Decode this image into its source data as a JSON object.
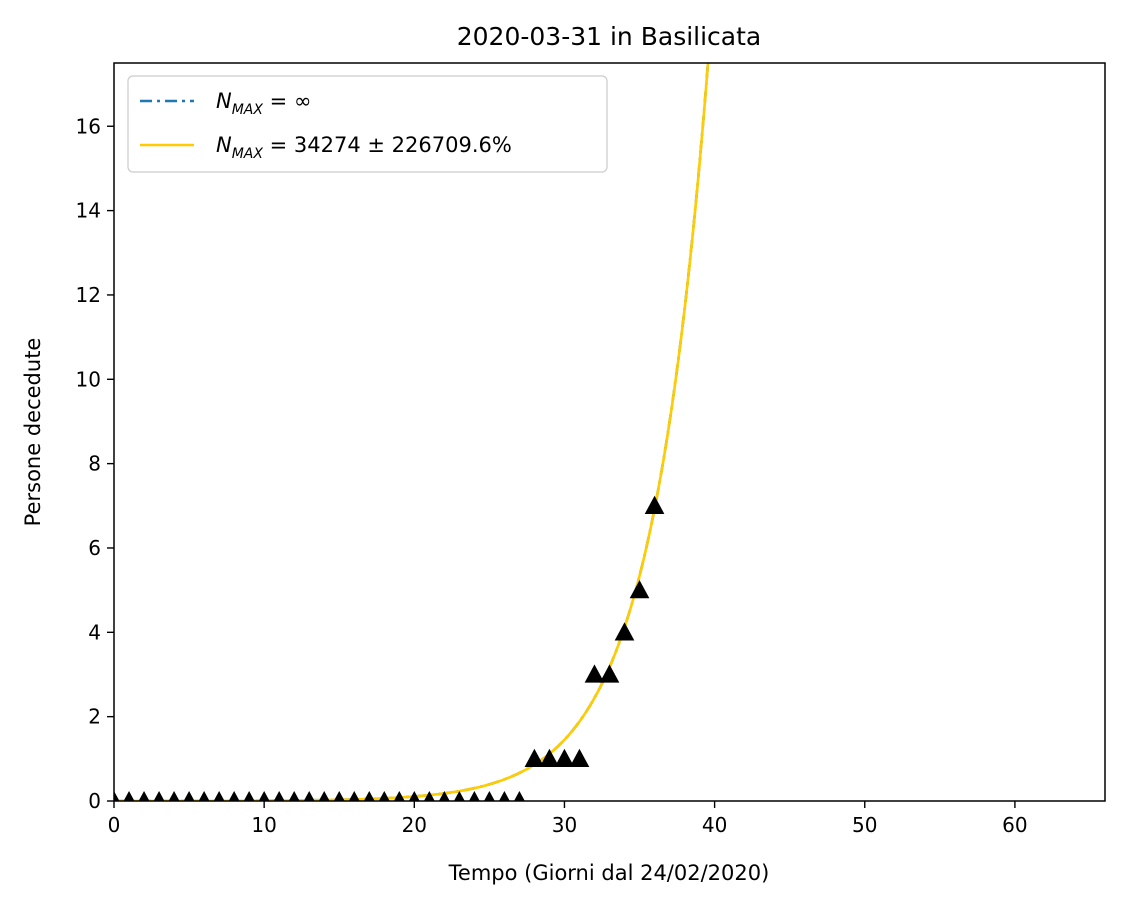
{
  "chart_data": {
    "type": "scatter",
    "title": "2020-03-31 in Basilicata",
    "xlabel": "Tempo (Giorni dal 24/02/2020)",
    "ylabel": "Persone decedute",
    "xlim": [
      0,
      66
    ],
    "ylim": [
      0,
      17.5
    ],
    "xticks": [
      0,
      10,
      20,
      30,
      40,
      50,
      60
    ],
    "yticks": [
      0,
      2,
      4,
      6,
      8,
      10,
      12,
      14,
      16
    ],
    "xtick_labels": [
      "0",
      "10",
      "20",
      "30",
      "40",
      "50",
      "60"
    ],
    "ytick_labels": [
      "0",
      "2",
      "4",
      "6",
      "8",
      "10",
      "12",
      "14",
      "16"
    ],
    "grid": false,
    "legend_position": "upper-left",
    "observed": {
      "marker": "triangle",
      "color": "#000000",
      "x": [
        0,
        1,
        2,
        3,
        4,
        5,
        6,
        7,
        8,
        9,
        10,
        11,
        12,
        13,
        14,
        15,
        16,
        17,
        18,
        19,
        20,
        21,
        22,
        23,
        24,
        25,
        26,
        27,
        28,
        29,
        30,
        31,
        32,
        33,
        34,
        35,
        36
      ],
      "y": [
        0,
        0,
        0,
        0,
        0,
        0,
        0,
        0,
        0,
        0,
        0,
        0,
        0,
        0,
        0,
        0,
        0,
        0,
        0,
        0,
        0,
        0,
        0,
        0,
        0,
        0,
        0,
        0,
        1,
        1,
        1,
        1,
        3,
        3,
        4,
        5,
        7
      ]
    },
    "series": [
      {
        "name": "N_MAX = ∞",
        "legend_main": "N",
        "legend_sub": "MAX",
        "legend_rest": " = ∞",
        "style": "dashdot",
        "color": "#1f77b4",
        "model": "exponential",
        "a": 0.000588,
        "b": 0.2604,
        "x_range": [
          0,
          40
        ]
      },
      {
        "name": "N_MAX = 34274 ± 226709.6%",
        "legend_main": "N",
        "legend_sub": "MAX",
        "legend_rest": " = 34274 ± 226709.6%",
        "style": "solid",
        "color": "#ffcc00",
        "model": "logistic",
        "K": 34274,
        "a": 0.000588,
        "b": 0.2604,
        "x_range": [
          0,
          40
        ]
      }
    ]
  }
}
